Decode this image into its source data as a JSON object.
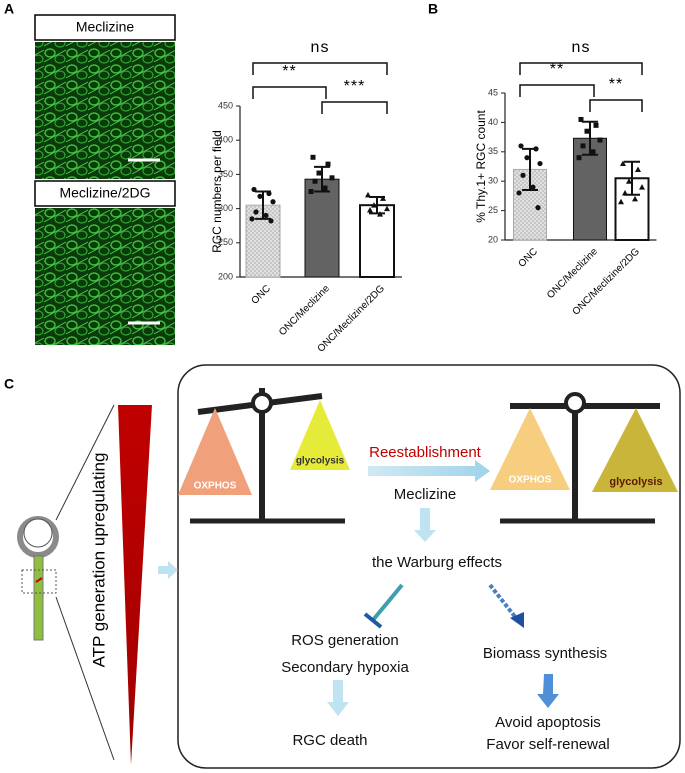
{
  "panels": [
    "A",
    "B",
    "C"
  ],
  "images": [
    "Meclizine",
    "Meclizine/2DG"
  ],
  "chart_data": [
    {
      "type": "bar",
      "y_label": "RGC numbers per field",
      "categories": [
        "ONC",
        "ONC/Meclizine",
        "ONC/Meclizine/2DG"
      ],
      "values": [
        305,
        343,
        305
      ],
      "errors": [
        20,
        18,
        12
      ],
      "points": [
        [
          328,
          322,
          318,
          310,
          295,
          290,
          285,
          282
        ],
        [
          375,
          365,
          352,
          345,
          340,
          330,
          325
        ],
        [
          320,
          315,
          305,
          300,
          298,
          292
        ]
      ],
      "colors": [
        "#d6d6d6",
        "#636363",
        "#ffffff"
      ],
      "ylim": [
        200,
        450
      ],
      "yticks": [
        200,
        250,
        300,
        350,
        400,
        450
      ],
      "annotations": [
        {
          "label": "ns",
          "from": 0,
          "to": 2
        },
        {
          "label": "**",
          "from": 0,
          "to": 1
        },
        {
          "label": "***",
          "from": 1,
          "to": 2
        }
      ]
    },
    {
      "type": "bar",
      "y_label": "% Thy.1+ RGC count",
      "categories": [
        "ONC",
        "ONC/Meclizine",
        "ONC/Meclizine/2DG"
      ],
      "values": [
        32,
        37.3,
        30.5
      ],
      "errors": [
        3.5,
        2.8,
        2.8
      ],
      "points": [
        [
          36,
          35.5,
          34,
          33,
          31,
          29,
          28,
          25.5
        ],
        [
          40.5,
          39.5,
          38.5,
          37,
          36,
          35,
          34
        ],
        [
          33,
          32,
          30,
          29,
          28,
          27,
          26.5
        ]
      ],
      "colors": [
        "#d6d6d6",
        "#636363",
        "#ffffff"
      ],
      "ylim": [
        20,
        45
      ],
      "yticks": [
        20,
        25,
        30,
        35,
        40,
        45
      ],
      "annotations": [
        {
          "label": "ns",
          "from": 0,
          "to": 2
        },
        {
          "label": "**",
          "from": 0,
          "to": 1
        },
        {
          "label": "**",
          "from": 1,
          "to": 2
        }
      ]
    }
  ],
  "diagram": {
    "side_label": "ATP generation upregulating",
    "left_balance": {
      "heavy": "OXPHOS",
      "light": "glycolysis"
    },
    "transition": "Reestablishment",
    "drug": "Meclizine",
    "right_balance": {
      "left": "OXPHOS",
      "right": "glycolysis"
    },
    "effect": "the Warburg effects",
    "inhibited": [
      "ROS generation",
      "Secondary hypoxia"
    ],
    "promoted": "Biomass  synthesis",
    "outcome_inhibited": "RGC death",
    "outcome_promoted": [
      "Avoid apoptosis",
      "Favor self-renewal"
    ]
  }
}
